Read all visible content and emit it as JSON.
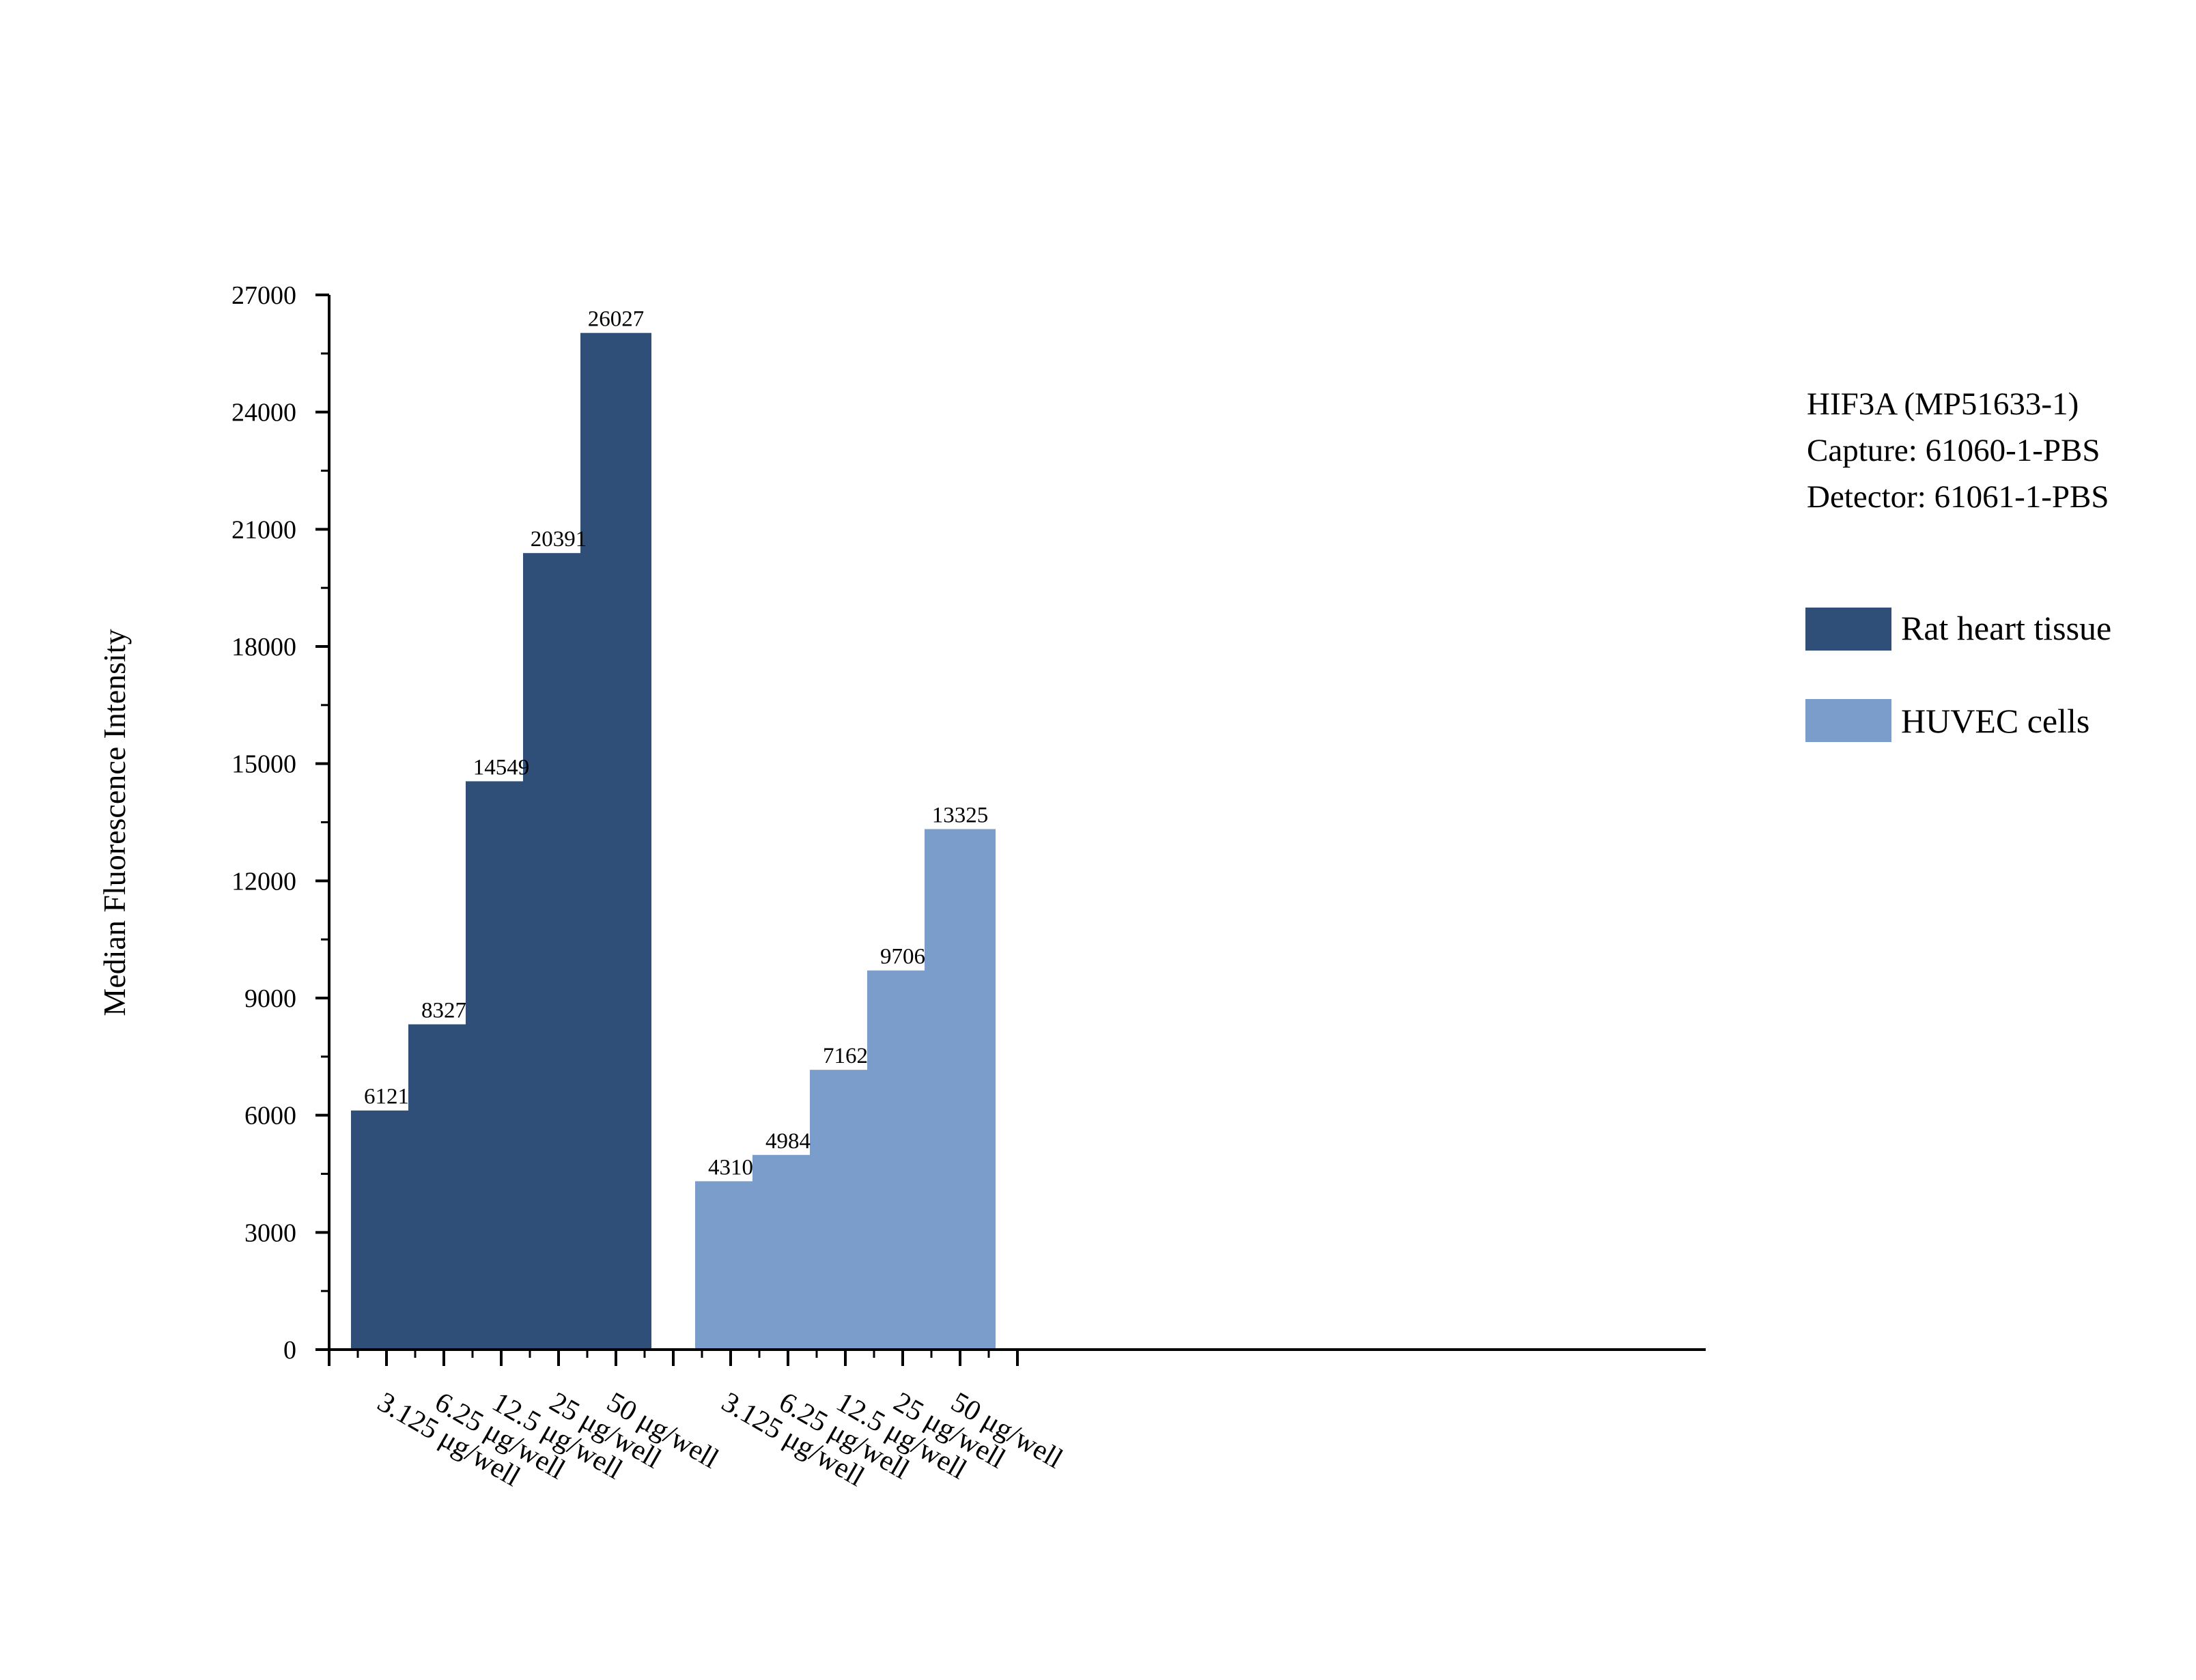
{
  "chart_data": {
    "type": "bar",
    "ylabel": "Median Fluorescence Intensity",
    "ylim": [
      0,
      27000
    ],
    "yticks": [
      0,
      3000,
      6000,
      9000,
      12000,
      15000,
      18000,
      21000,
      24000,
      27000
    ],
    "info_lines": [
      "HIF3A (MP51633-1)",
      "Capture: 61060-1-PBS",
      "Detector: 61061-1-PBS"
    ],
    "legend_placement": "right",
    "grid": false,
    "groups": [
      {
        "name": "Rat heart tissue",
        "color": "#2F4F79",
        "categories": [
          "3.125 μg/well",
          "6.25 μg/well",
          "12.5 μg/well",
          "25 μg/well",
          "50 μg/well"
        ],
        "values": [
          6121,
          8327,
          14549,
          20391,
          26027
        ]
      },
      {
        "name": "HUVEC cells",
        "color": "#7B9DCB",
        "categories": [
          "3.125 μg/well",
          "6.25 μg/well",
          "12.5 μg/well",
          "25 μg/well",
          "50 μg/well"
        ],
        "values": [
          4310,
          4984,
          7162,
          9706,
          13325
        ]
      }
    ]
  }
}
